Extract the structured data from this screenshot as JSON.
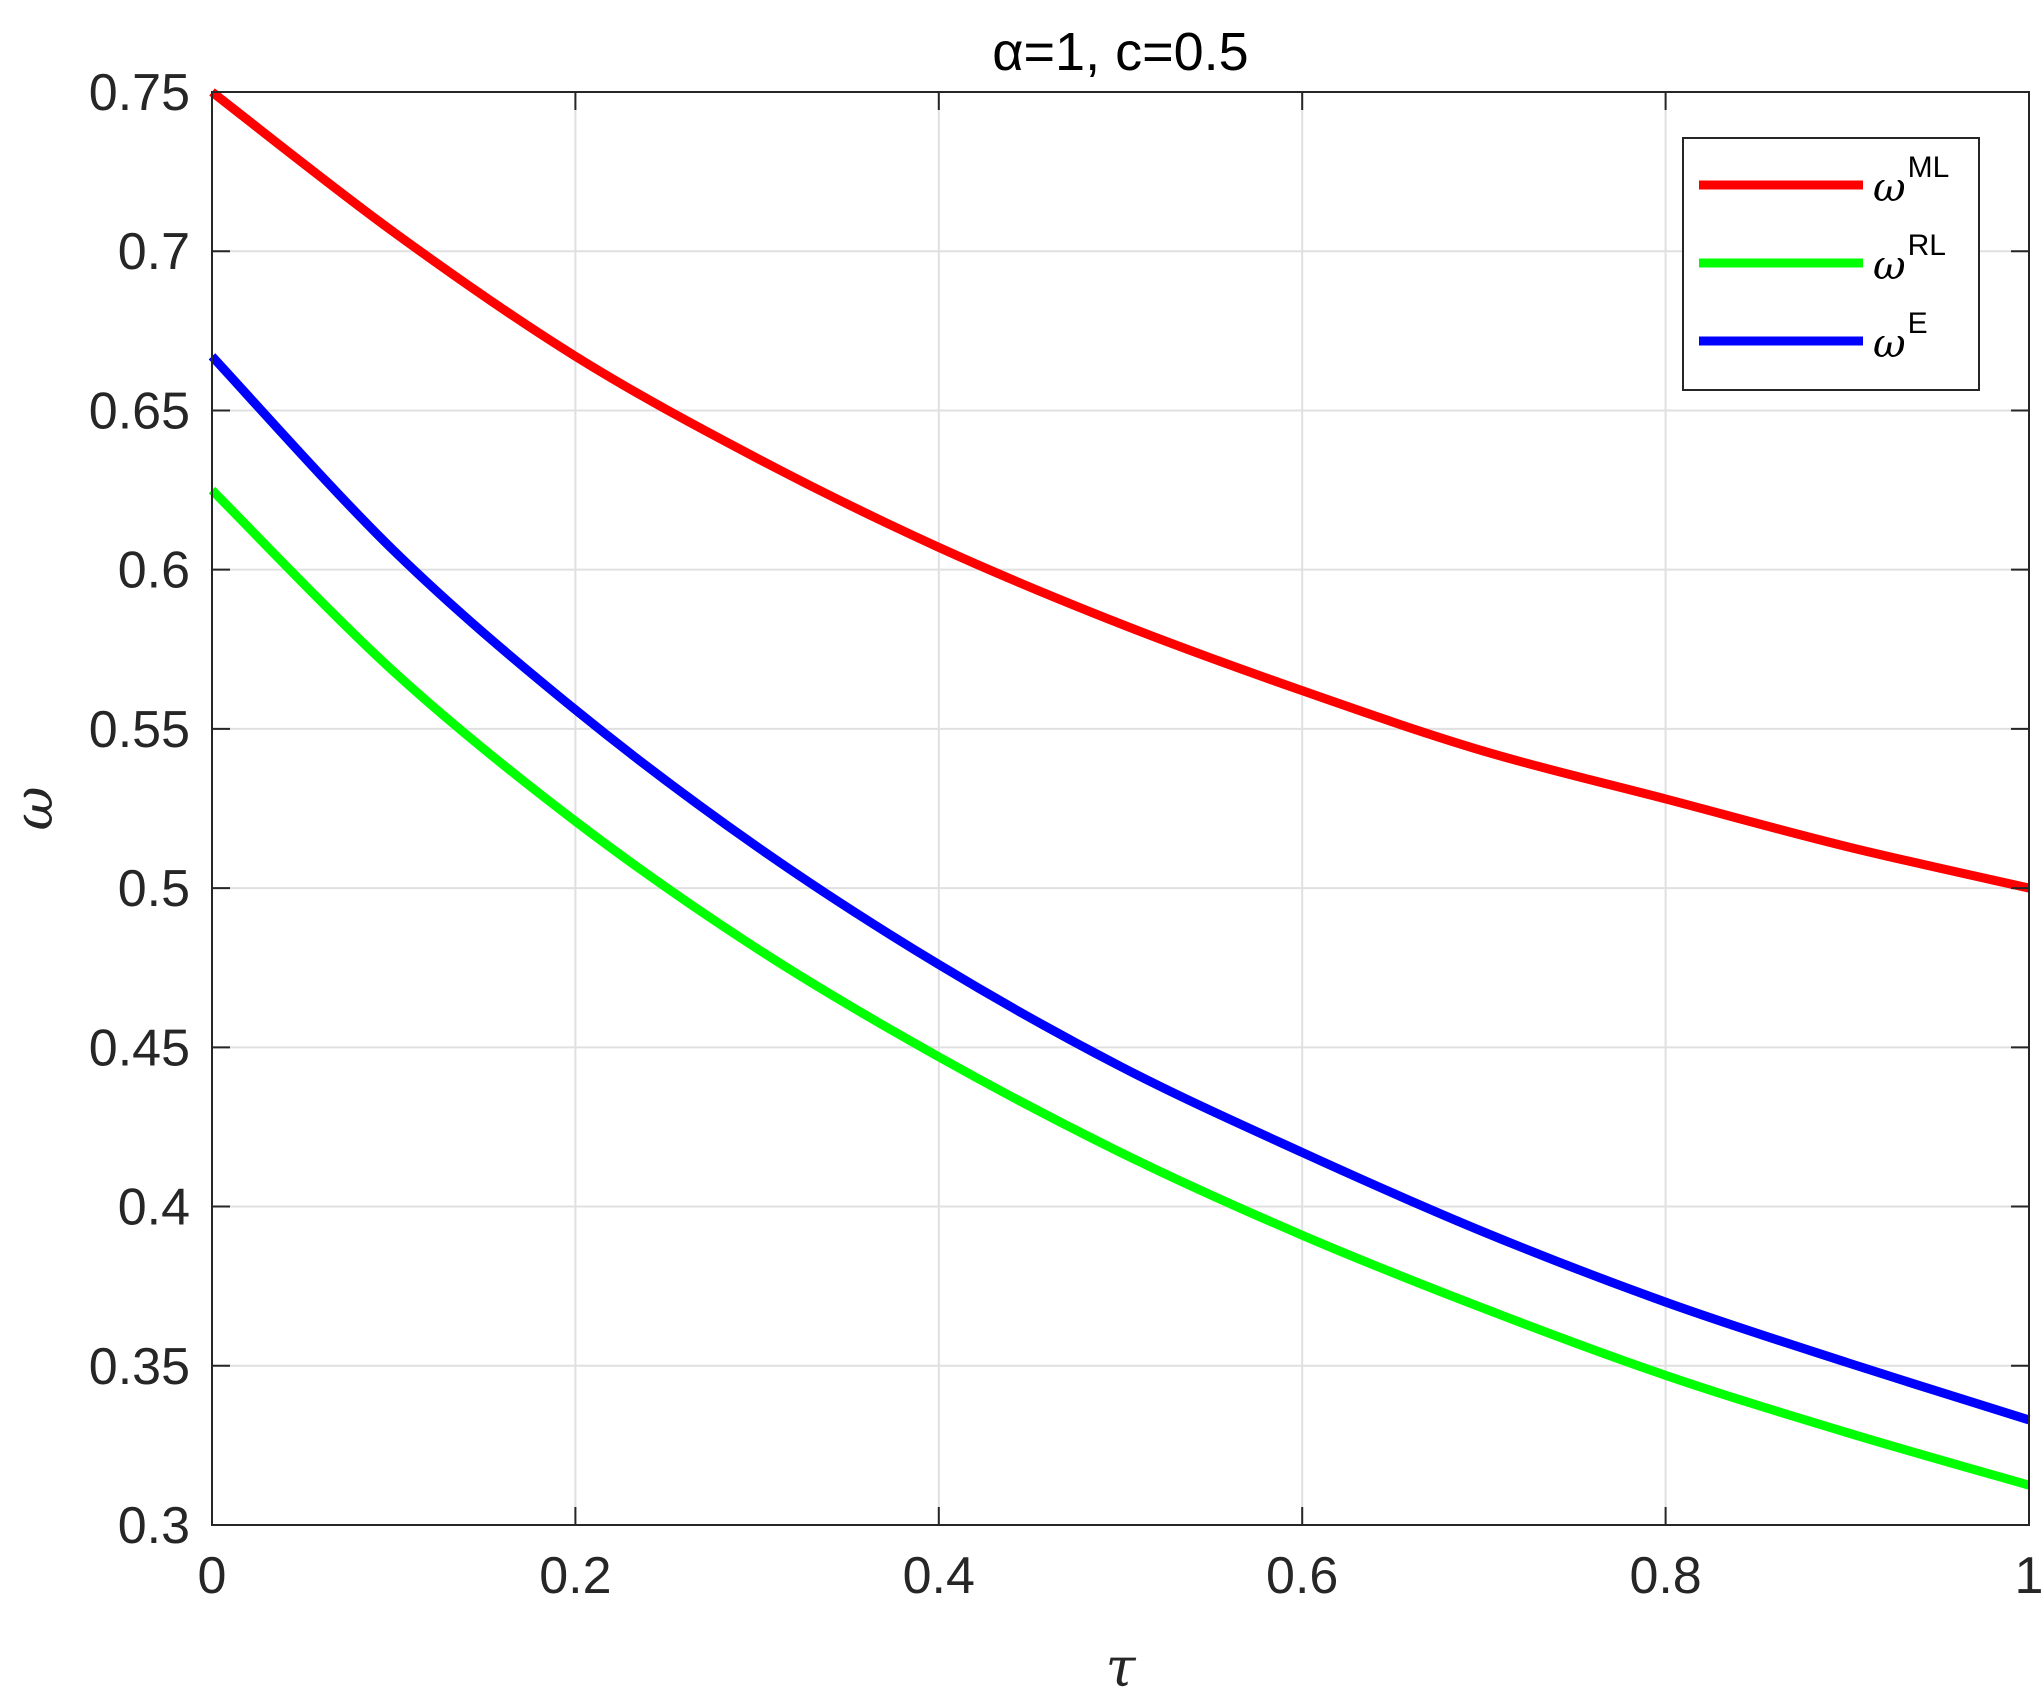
{
  "chart_data": {
    "type": "line",
    "title": "α=1, c=0.5",
    "xlabel": "τ",
    "ylabel": "ω",
    "xlim": [
      0,
      1
    ],
    "ylim": [
      0.3,
      0.75
    ],
    "xticks": [
      0,
      0.2,
      0.4,
      0.6,
      0.8,
      1
    ],
    "xtick_labels": [
      "0",
      "0.2",
      "0.4",
      "0.6",
      "0.8",
      "1"
    ],
    "yticks": [
      0.3,
      0.35,
      0.4,
      0.45,
      0.5,
      0.55,
      0.6,
      0.65,
      0.7,
      0.75
    ],
    "ytick_labels": [
      "0.3",
      "0.35",
      "0.4",
      "0.45",
      "0.5",
      "0.55",
      "0.6",
      "0.65",
      "0.7",
      "0.75"
    ],
    "grid": true,
    "legend_position": "top-right",
    "x": [
      0,
      0.1,
      0.2,
      0.3,
      0.4,
      0.5,
      0.6,
      0.7,
      0.8,
      0.9,
      1
    ],
    "series": [
      {
        "name": "ω",
        "name_sup": "ML",
        "color": "#ff0000",
        "values": [
          0.75,
          0.706,
          0.667,
          0.635,
          0.607,
          0.583,
          0.562,
          0.543,
          0.528,
          0.513,
          0.5
        ]
      },
      {
        "name": "ω",
        "name_sup": "RL",
        "color": "#00ff00",
        "values": [
          0.625,
          0.568,
          0.521,
          0.481,
          0.447,
          0.417,
          0.391,
          0.368,
          0.347,
          0.329,
          0.3125
        ]
      },
      {
        "name": "ω",
        "name_sup": "E",
        "color": "#0000ff",
        "values": [
          0.667,
          0.606,
          0.556,
          0.513,
          0.476,
          0.444,
          0.417,
          0.392,
          0.37,
          0.351,
          0.333
        ]
      }
    ]
  }
}
